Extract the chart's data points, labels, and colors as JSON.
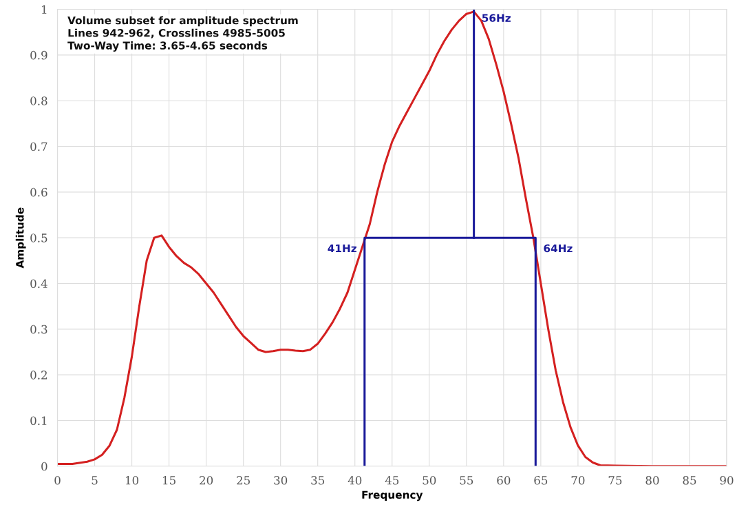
{
  "chart_data": {
    "type": "line",
    "xlabel": "Frequency",
    "ylabel": "Amplitude",
    "annotations": [
      "Volume subset for amplitude spectrum\nLines 942-962, Crosslines 4985-5005\nTwo-Way Time: 3.65-4.65 seconds",
      {
        "text": "41Hz",
        "x": 41.3,
        "y": 0.5
      },
      {
        "text": "56Hz",
        "x": 56,
        "y": 1
      },
      {
        "text": "64Hz",
        "x": 64.3,
        "y": 0.5
      }
    ],
    "series": [
      {
        "color": "#d42020",
        "x": [
          0,
          2,
          4,
          5,
          6,
          7,
          8,
          9,
          10,
          11,
          12,
          13,
          14,
          15,
          16,
          17,
          18,
          19,
          20,
          21,
          22,
          23,
          24,
          25,
          26,
          27,
          28,
          29,
          30,
          31,
          32,
          33,
          34,
          35,
          36,
          37,
          38,
          39,
          40,
          41,
          42,
          43,
          44,
          45,
          46,
          47,
          48,
          49,
          50,
          51,
          52,
          53,
          54,
          55,
          56,
          57,
          58,
          59,
          60,
          61,
          62,
          63,
          64,
          65,
          66,
          67,
          68,
          69,
          70,
          71,
          72,
          73,
          75,
          80,
          90
        ],
        "values": [
          0.005,
          0.005,
          0.01,
          0.015,
          0.025,
          0.045,
          0.08,
          0.15,
          0.24,
          0.35,
          0.45,
          0.5,
          0.505,
          0.48,
          0.46,
          0.445,
          0.435,
          0.42,
          0.4,
          0.38,
          0.355,
          0.33,
          0.305,
          0.285,
          0.27,
          0.255,
          0.25,
          0.252,
          0.255,
          0.255,
          0.253,
          0.252,
          0.255,
          0.268,
          0.29,
          0.315,
          0.345,
          0.38,
          0.43,
          0.48,
          0.53,
          0.6,
          0.66,
          0.71,
          0.745,
          0.775,
          0.805,
          0.835,
          0.865,
          0.9,
          0.93,
          0.955,
          0.975,
          0.99,
          0.995,
          0.975,
          0.935,
          0.88,
          0.82,
          0.75,
          0.675,
          0.585,
          0.5,
          0.4,
          0.3,
          0.21,
          0.14,
          0.085,
          0.045,
          0.02,
          0.008,
          0.002,
          0.001,
          0,
          0
        ]
      },
      {
        "color": "#1a1a9a",
        "x": [
          41.3,
          41.3,
          64.3,
          64.3
        ],
        "values": [
          0,
          0.5,
          0.5,
          0
        ]
      },
      {
        "color": "#1a1a9a",
        "x": [
          56,
          56
        ],
        "values": [
          0.5,
          1
        ]
      }
    ],
    "xlim": [
      0,
      90
    ],
    "xticks": [
      0,
      5,
      10,
      15,
      20,
      25,
      30,
      35,
      40,
      45,
      50,
      55,
      60,
      65,
      70,
      75,
      80,
      85,
      90
    ],
    "ylim": [
      0,
      1
    ],
    "yticks": [
      0,
      {
        "value": 0.1,
        "label": "0.1"
      },
      {
        "value": 0.2,
        "label": "0.2"
      },
      {
        "value": 0.3,
        "label": "0.3"
      },
      {
        "value": 0.4,
        "label": "0.4"
      },
      {
        "value": 0.5,
        "label": "0.5"
      },
      {
        "value": 0.6,
        "label": "0.6"
      },
      {
        "value": 0.7,
        "label": "0.7"
      },
      {
        "value": 0.8,
        "label": "0.8"
      },
      {
        "value": 0.9,
        "label": "0.9"
      },
      1
    ],
    "grid": true,
    "marker": "none",
    "line_style": "solid"
  }
}
